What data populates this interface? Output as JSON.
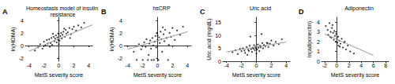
{
  "chart_data": [
    {
      "type": "scatter",
      "panel_label": "A",
      "title": "Homeostasis model of insulin resistance",
      "x_label": "MetS severity score",
      "y_label": "ln(HOMA)",
      "xlim": [
        -4.5,
        4.5
      ],
      "xticks": [
        -4,
        -2,
        0,
        2,
        4
      ],
      "ylim": [
        -2.5,
        4.5
      ],
      "yticks": [
        -2,
        0,
        2,
        4
      ],
      "grid": false,
      "series": [
        {
          "type": "scatter",
          "color": "#000000",
          "marker": "circle",
          "x": [
            -3.2,
            -2.8,
            -2.5,
            -2.2,
            -2.0,
            -1.8,
            -1.6,
            -1.5,
            -1.3,
            -1.1,
            -1.0,
            -0.9,
            -0.7,
            -0.6,
            -0.5,
            -0.4,
            -0.3,
            -0.2,
            -0.1,
            0,
            0.1,
            0.2,
            0.3,
            0.4,
            0.5,
            0.6,
            0.8,
            0.9,
            1.0,
            1.2,
            1.4,
            1.6,
            1.8,
            2.0,
            2.3,
            2.6,
            3.0,
            3.4,
            -1.2,
            -0.8,
            0.0,
            0.7,
            1.5
          ],
          "values": [
            -0.8,
            -0.3,
            0.2,
            -0.5,
            0.6,
            0.0,
            0.9,
            0.3,
            1.0,
            0.4,
            1.2,
            0.1,
            1.4,
            0.7,
            1.1,
            1.6,
            0.5,
            1.3,
            0.9,
            1.8,
            0.8,
            1.5,
            2.0,
            1.1,
            1.7,
            2.2,
            1.4,
            2.5,
            1.9,
            2.1,
            2.8,
            1.8,
            2.6,
            3.0,
            2.4,
            3.2,
            2.9,
            3.6,
            -0.2,
            1.9,
            0.2,
            2.7,
            1.2
          ]
        },
        {
          "type": "line",
          "color": "#999999",
          "line_style": "solid",
          "x": [
            -4,
            4.5
          ],
          "values": [
            -0.9,
            3.3
          ]
        }
      ]
    },
    {
      "type": "scatter",
      "panel_label": "B",
      "title": "hsCRP",
      "x_label": "MetS severity score",
      "y_label": "ln(HOMA)",
      "xlim": [
        -4.5,
        4.5
      ],
      "xticks": [
        -4,
        -2,
        0,
        2,
        4
      ],
      "ylim": [
        -2.5,
        4.5
      ],
      "yticks": [
        -2,
        0,
        2,
        4
      ],
      "grid": false,
      "series": [
        {
          "type": "scatter",
          "color": "#000000",
          "marker": "circle",
          "x": [
            -3.2,
            -2.8,
            -2.5,
            -2.2,
            -2.0,
            -1.8,
            -1.6,
            -1.5,
            -1.3,
            -1.1,
            -1.0,
            -0.9,
            -0.7,
            -0.6,
            -0.5,
            -0.4,
            -0.3,
            -0.2,
            -0.1,
            0,
            0.1,
            0.2,
            0.3,
            0.4,
            0.5,
            0.6,
            0.8,
            0.9,
            1.0,
            1.2,
            1.4,
            1.6,
            1.8,
            2.0,
            2.3,
            2.6,
            3.0,
            3.4,
            -1.2,
            -0.8,
            0.0,
            0.7,
            1.5
          ],
          "values": [
            -1.0,
            -2.3,
            0.2,
            -0.6,
            -2.3,
            0.5,
            -0.2,
            1.0,
            -2.3,
            0.3,
            0.8,
            -0.5,
            1.2,
            0.0,
            -2.3,
            0.6,
            1.5,
            -0.3,
            2.0,
            0.9,
            -2.3,
            1.3,
            0.4,
            2.2,
            1.0,
            -1.0,
            1.8,
            0.7,
            2.5,
            1.2,
            -2.3,
            2.0,
            1.4,
            2.8,
            0.9,
            2.4,
            1.7,
            3.0,
            -1.5,
            -2.3,
            1.6,
            2.9,
            0.1
          ]
        },
        {
          "type": "line",
          "color": "#999999",
          "line_style": "solid",
          "x": [
            -4,
            4
          ],
          "values": [
            -0.6,
            2.2
          ]
        }
      ]
    },
    {
      "type": "scatter",
      "panel_label": "C",
      "title": "Uric acid",
      "x_label": "MetS severity score",
      "y_label": "Uric acid (mg/dL)",
      "xlim": [
        -4.5,
        4.5
      ],
      "xticks": [
        -4,
        -2,
        0,
        2,
        4
      ],
      "ylim": [
        0,
        17
      ],
      "yticks": [
        0,
        5,
        10,
        15
      ],
      "grid": false,
      "series": [
        {
          "type": "scatter",
          "color": "#000000",
          "marker": "circle",
          "x": [
            -3.2,
            -2.8,
            -2.5,
            -2.2,
            -2.0,
            -1.8,
            -1.6,
            -1.5,
            -1.3,
            -1.1,
            -1.0,
            -0.9,
            -0.7,
            -0.6,
            -0.5,
            -0.4,
            -0.3,
            -0.2,
            -0.1,
            0,
            0.1,
            0.2,
            0.3,
            0.4,
            0.5,
            0.6,
            0.8,
            0.9,
            1.0,
            1.2,
            1.4,
            1.6,
            1.8,
            2.0,
            2.3,
            2.6,
            3.0,
            3.4,
            -1.2,
            -0.8,
            0.0,
            0.7,
            1.5
          ],
          "values": [
            3.5,
            4.2,
            2.8,
            4.8,
            3.9,
            5.0,
            4.1,
            3.2,
            5.5,
            4.4,
            4.0,
            6.0,
            4.7,
            3.6,
            5.3,
            4.9,
            6.2,
            4.3,
            5.6,
            5.1,
            4.5,
            6.5,
            5.2,
            3.9,
            6.0,
            5.4,
            7.0,
            5.0,
            6.3,
            5.8,
            7.2,
            5.5,
            6.8,
            8.0,
            6.1,
            7.5,
            6.6,
            8.5,
            2.5,
            9.5,
            3.0,
            10.5,
            6.9
          ]
        },
        {
          "type": "line",
          "color": "#999999",
          "line_style": "solid",
          "x": [
            -4,
            4
          ],
          "values": [
            3.6,
            7.4
          ]
        }
      ]
    },
    {
      "type": "scatter",
      "panel_label": "D",
      "title": "Adiponectin",
      "x_label": "MetS severity score",
      "y_label": "ln(adiponectin)",
      "xlim": [
        -2.5,
        8.5
      ],
      "xticks": [
        -2,
        0,
        2,
        4,
        6,
        8
      ],
      "ylim": [
        0,
        4.5
      ],
      "yticks": [
        0,
        1,
        2,
        3,
        4
      ],
      "grid": false,
      "series": [
        {
          "type": "scatter",
          "color": "#000000",
          "marker": "circle",
          "x": [
            -1.8,
            -1.5,
            -1.4,
            -1.2,
            -1.0,
            -0.9,
            -0.8,
            -0.6,
            -0.5,
            -0.4,
            -0.3,
            -0.2,
            -0.1,
            0,
            0.1,
            0.2,
            0.3,
            0.4,
            0.6,
            0.8,
            1.0,
            1.2,
            1.5,
            1.8,
            2.2,
            2.8,
            -1.1,
            -0.7,
            0.5,
            1.3
          ],
          "values": [
            3.6,
            3.2,
            2.7,
            3.9,
            3.0,
            2.4,
            3.4,
            2.9,
            2.2,
            3.1,
            2.6,
            2.0,
            2.8,
            2.3,
            1.9,
            2.5,
            1.6,
            2.1,
            1.8,
            2.3,
            1.4,
            1.9,
            1.2,
            1.6,
            1.0,
            0.8,
            2.5,
            3.7,
            1.5,
            2.0
          ]
        },
        {
          "type": "line",
          "color": "#999999",
          "line_style": "solid",
          "x": [
            -2,
            6
          ],
          "values": [
            2.8,
            0.6
          ]
        }
      ]
    }
  ]
}
